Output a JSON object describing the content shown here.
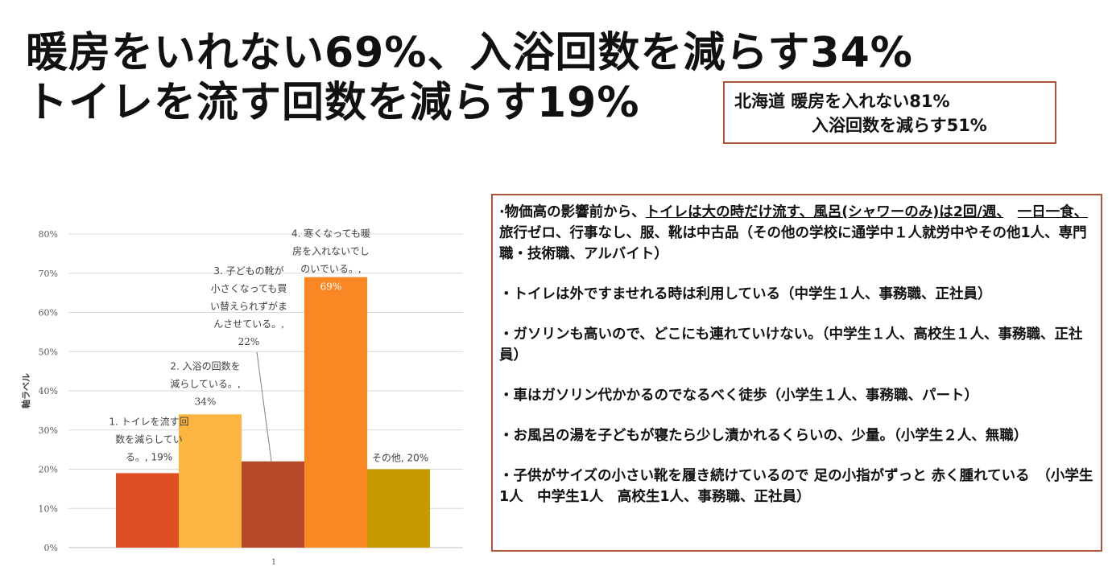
{
  "title": {
    "line1": "暖房をいれない69%、入浴回数を減らす34%",
    "line2": "トイレを流す回数を減らす19%"
  },
  "hokkaido_box": {
    "line1": "北海道 暖房を入れない81%",
    "line2": "入浴回数を減らす51%"
  },
  "colors": {
    "border": "#b0543a"
  },
  "chart_data": {
    "type": "bar",
    "categories": [
      "1"
    ],
    "series": [
      {
        "name": "1. トイレを流す回数を減らしている。",
        "values": [
          19
        ],
        "color": "#e04e24",
        "label_lines": [
          "1. トイレを流す回",
          "数を減らしてい",
          "る。, 19%"
        ]
      },
      {
        "name": "2. 入浴の回数を減らしている。",
        "values": [
          34
        ],
        "color": "#fbb540",
        "label_lines": [
          "2. 入浴の回数を",
          "減らしている。,",
          "34%"
        ]
      },
      {
        "name": "3. 子どもの靴が小さくなっても買い替えられずがまんさせている。",
        "values": [
          22
        ],
        "color": "#b5492a",
        "label_lines": [
          "3. 子どもの靴が",
          "小さくなっても買",
          "い替えられずがま",
          "んさせている。,",
          "22%"
        ]
      },
      {
        "name": "4. 寒くなっても暖房を入れないでしのいでいる。",
        "values": [
          69
        ],
        "color": "#fb8724",
        "label_lines": [
          "4. 寒くなっても暖",
          "房を入れないでし",
          "のいでいる。,",
          "69%"
        ]
      },
      {
        "name": "その他",
        "values": [
          20
        ],
        "color": "#c99a00",
        "label_lines": [
          "その他, 20%"
        ]
      }
    ],
    "ylabel": "軸ラベル",
    "ylim": [
      0,
      80
    ],
    "yticks": [
      "0%",
      "10%",
      "20%",
      "30%",
      "40%",
      "50%",
      "60%",
      "70%",
      "80%"
    ],
    "grid": true,
    "legend": "none"
  },
  "quotes": {
    "q1_pre": "·物価高の影響前から、",
    "q1_u1": "トイレは大の時だけ流す、風呂(シャワーのみ)は2回/週、",
    "q1_u2": "一日一食、",
    "q1_post": " 旅行ゼロ、行事なし、服、靴は中古品（その他の学校に通学中１人就労中やその他1人、専門職・技術職、アルバイト）",
    "q2": "・トイレは外ですませれる時は利用している（中学生１人、事務職、正社員）",
    "q3": "・ガソリンも高いので、どこにも連れていけない。（中学生１人、高校生１人、事務職、正社員）",
    "q4": "・車はガソリン代かかるのでなるべく徒歩（小学生１人、事務職、パート）",
    "q5": "・お風呂の湯を子どもが寝たら少し漬かれるくらいの、少量。（小学生２人、無職）",
    "q6": "・子供がサイズの小さい靴を履き続けているので 足の小指がずっと 赤く腫れている　（小学生1人　中学生1人　高校生1人、事務職、正社員）"
  }
}
